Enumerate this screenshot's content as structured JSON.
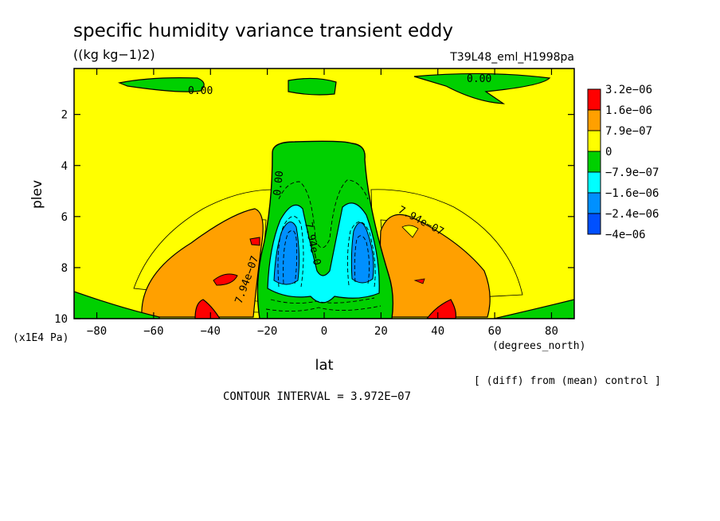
{
  "chart_data": {
    "type": "contour",
    "title": "specific humidity variance transient eddy",
    "units": "((kg kg−1)2)",
    "run_label": "T39L48_eml_H1998pa",
    "xlabel": "lat",
    "xunits": "(degrees_north)",
    "ylabel": "plev",
    "yunits": "(x1E4 Pa)",
    "xlim": [
      -88,
      88
    ],
    "ylim": [
      0.2,
      10
    ],
    "y_inverted": true,
    "x_ticks": [
      -80,
      -60,
      -40,
      -20,
      0,
      20,
      40,
      60,
      80
    ],
    "x_tick_labels": [
      "−80",
      "−60",
      "−40",
      "−20",
      "0",
      "20",
      "40",
      "60",
      "80"
    ],
    "y_ticks": [
      2,
      4,
      6,
      8,
      10
    ],
    "y_tick_labels": [
      "2",
      "4",
      "6",
      "8",
      "10"
    ],
    "contour_interval_text": "CONTOUR INTERVAL = 3.972E−07",
    "diff_note": "[ (diff) from (mean) control ]",
    "contour_labels": [
      "0.00",
      "0.00",
      "0.00",
      "7.94e−0",
      "7.94e−07",
      "7.94e−07"
    ],
    "legend": {
      "placement": "right",
      "entries": [
        {
          "label": "3.2e−06",
          "color": "#ff0000"
        },
        {
          "label": "1.6e−06",
          "color": "#ffa000"
        },
        {
          "label": "7.9e−07",
          "color": "#ffff00"
        },
        {
          "label": "0",
          "color": "#00d000"
        },
        {
          "label": "−7.9e−07",
          "color": "#00ffff"
        },
        {
          "label": "−1.6e−06",
          "color": "#0090ff"
        },
        {
          "label": "−2.4e−06",
          "color": "#0050ff"
        },
        {
          "label": "−4e−06",
          "color": "#0050ff"
        }
      ],
      "colors_top_to_bottom": [
        "#ff0000",
        "#ffa000",
        "#ffff00",
        "#00d000",
        "#00ffff",
        "#0090ff",
        "#0050ff"
      ]
    },
    "regions": [
      {
        "level": "0",
        "color": "#ffff00",
        "description": "background"
      },
      {
        "level": "-7.9e-07",
        "color": "#00d000",
        "lat": [
          -22,
          22
        ],
        "plev": [
          3.2,
          10
        ]
      },
      {
        "level": "-1.6e-06",
        "color": "#00ffff",
        "lat": [
          -18,
          18
        ],
        "plev": [
          5.4,
          9.4
        ]
      },
      {
        "level": "-2.4e-06",
        "color": "#0090ff",
        "lat": [
          -17,
          -10
        ],
        "plev": [
          6.0,
          8.7
        ]
      },
      {
        "level": "-2.4e-06",
        "color": "#0090ff",
        "lat": [
          10,
          17
        ],
        "plev": [
          6.0,
          8.7
        ]
      },
      {
        "level": "1.6e-06",
        "color": "#ffa000",
        "lat": [
          -62,
          -22
        ],
        "plev": [
          6.0,
          10
        ]
      },
      {
        "level": "1.6e-06",
        "color": "#ffa000",
        "lat": [
          20,
          60
        ],
        "plev": [
          6.0,
          10
        ]
      },
      {
        "level": "3.2e-06",
        "color": "#ff0000",
        "lat": [
          -45,
          -37
        ],
        "plev": [
          9.2,
          10
        ]
      },
      {
        "level": "3.2e-06",
        "color": "#ff0000",
        "lat": [
          36,
          45
        ],
        "plev": [
          9.2,
          10
        ]
      }
    ]
  }
}
